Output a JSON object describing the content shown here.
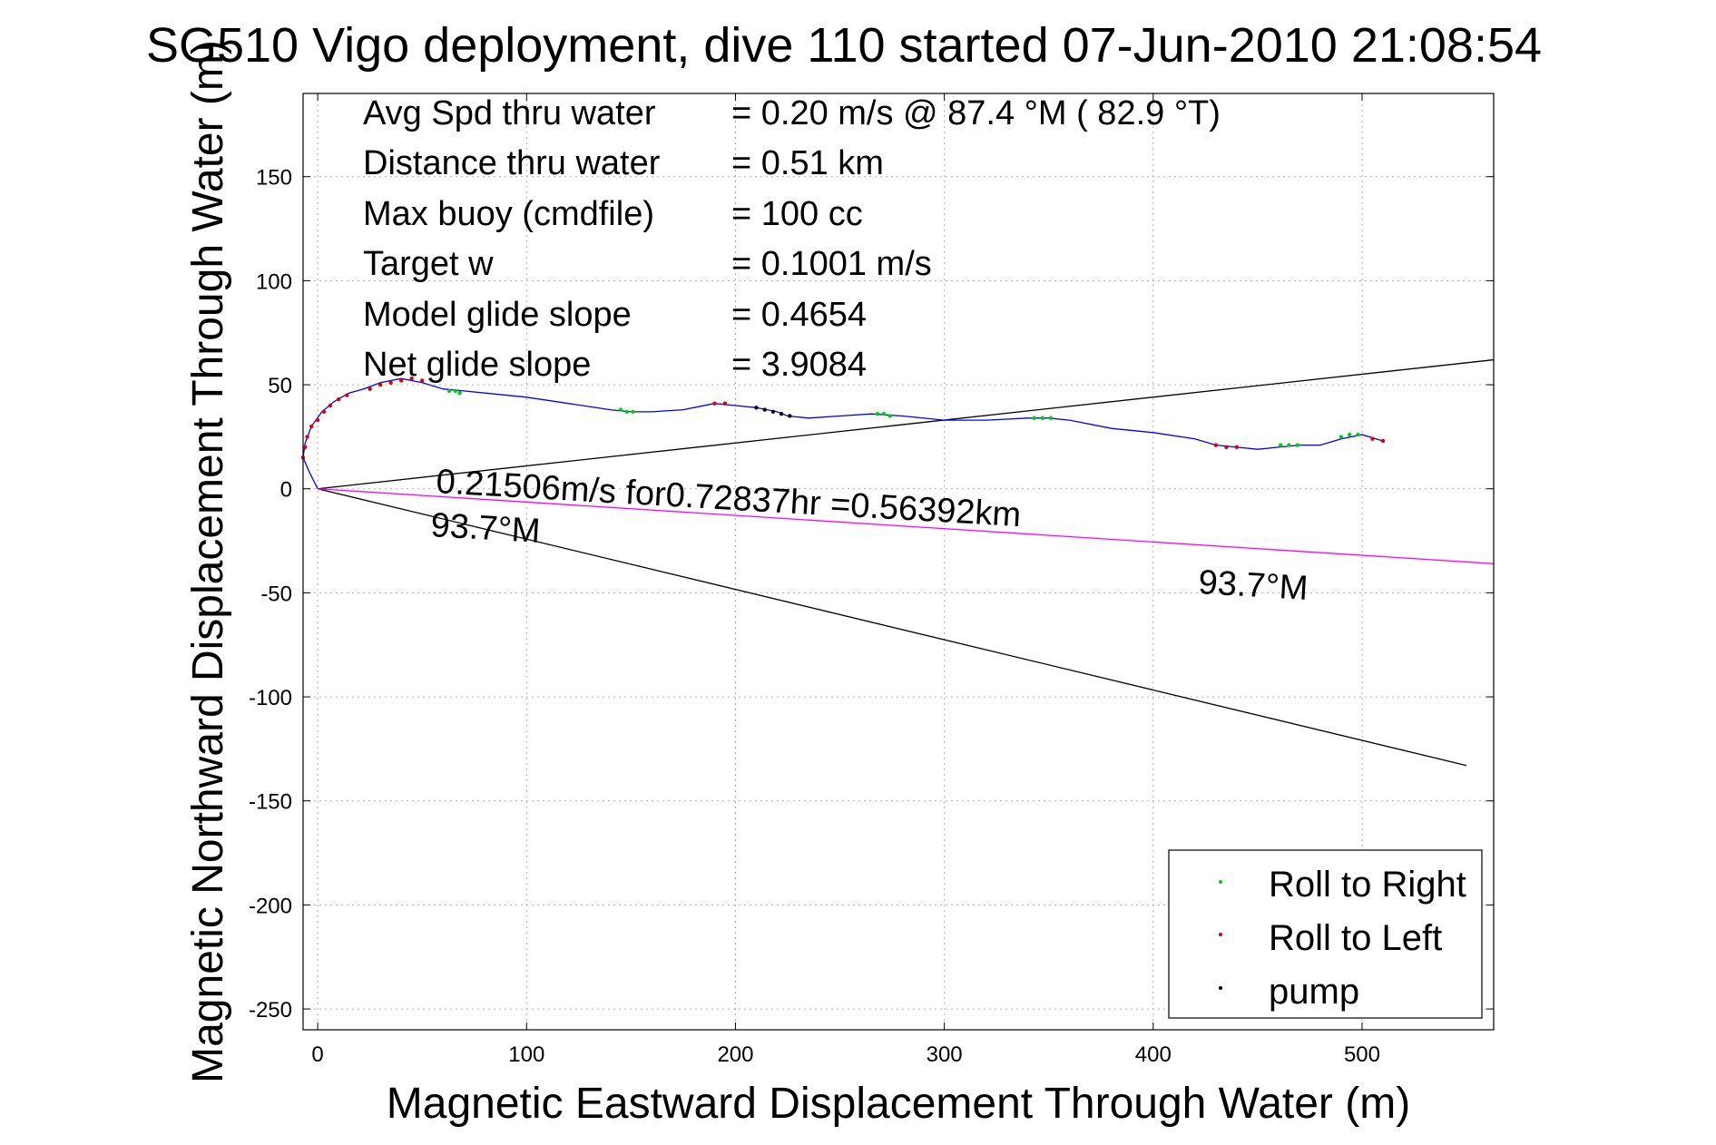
{
  "chart_data": {
    "type": "line",
    "title": "SG510 Vigo deployment, dive 110 started 07-Jun-2010 21:08:54",
    "xlabel": "Magnetic Eastward Displacement Through Water (m)",
    "ylabel": "Magnetic Northward Displacement Through Water (m)",
    "xlim": [
      -7,
      563
    ],
    "ylim": [
      -260,
      190
    ],
    "x_ticks": [
      "0",
      "100",
      "200",
      "300",
      "400",
      "500"
    ],
    "x_tick_values": [
      0,
      100,
      200,
      300,
      400,
      500
    ],
    "y_ticks": [
      "150",
      "100",
      "50",
      "0",
      "-50",
      "-100",
      "-150",
      "-200",
      "-250"
    ],
    "y_tick_values": [
      150,
      100,
      50,
      0,
      -50,
      -100,
      -150,
      -200,
      -250
    ],
    "grid": true,
    "legend_position": "bottom-right",
    "info_lines": [
      {
        "label": "Avg Spd thru water",
        "value": "=  0.20 m/s @  87.4 °M ( 82.9 °T)"
      },
      {
        "label": "Distance thru water",
        "value": "=  0.51 km"
      },
      {
        "label": "Max buoy (cmdfile)",
        "value": "= 100 cc"
      },
      {
        "label": "Target w",
        "value": "= 0.1001 m/s"
      },
      {
        "label": "Model glide slope",
        "value": "= 0.4654"
      },
      {
        "label": "Net glide slope",
        "value": "= 3.9084"
      }
    ],
    "annotations": {
      "current": "0.21506m/s for0.72837hr =0.56392km",
      "current_heading": "93.7°M",
      "heading_label": "93.7°M"
    },
    "track": {
      "color": "#0000ff",
      "x": [
        0,
        -4,
        -7,
        -6,
        -3,
        2,
        8,
        15,
        22,
        30,
        40,
        50,
        60,
        70,
        80,
        100,
        120,
        140,
        150,
        160,
        175,
        190,
        200,
        210,
        220,
        225,
        235,
        250,
        265,
        280,
        300,
        320,
        340,
        350,
        360,
        380,
        400,
        420,
        430,
        440,
        450,
        460,
        470,
        480,
        490,
        500,
        510
      ],
      "y": [
        0,
        8,
        15,
        22,
        30,
        37,
        42,
        46,
        48,
        51,
        53,
        51,
        48,
        47,
        46,
        44,
        41,
        38,
        37,
        37,
        38,
        41,
        40,
        39,
        37,
        35,
        34,
        35,
        36,
        35,
        33,
        33,
        34,
        34,
        33,
        29,
        27,
        24,
        21,
        20,
        19,
        20,
        21,
        21,
        24,
        26,
        23
      ]
    },
    "series": [
      {
        "name": "Roll to Right",
        "color": "#00d000",
        "x": [
          63,
          66,
          68,
          145,
          148,
          151,
          268,
          271,
          274,
          343,
          347,
          351,
          461,
          465,
          469,
          490,
          494,
          498
        ],
        "y": [
          47,
          47,
          46,
          38,
          37,
          37,
          36,
          36,
          35,
          34,
          34,
          34,
          21,
          21,
          21,
          25,
          26,
          26
        ]
      },
      {
        "name": "Roll to Left",
        "color": "#e00000",
        "x": [
          -7,
          -6,
          -5,
          -3,
          0,
          3,
          6,
          10,
          14,
          25,
          30,
          35,
          40,
          45,
          50,
          190,
          195,
          430,
          435,
          440,
          505,
          510
        ],
        "y": [
          15,
          20,
          25,
          30,
          33,
          37,
          40,
          43,
          45,
          48,
          50,
          51,
          52,
          53,
          52,
          41,
          41,
          21,
          20,
          20,
          24,
          23
        ]
      },
      {
        "name": "pump",
        "color": "#000000",
        "x": [
          210,
          214,
          218,
          222,
          226
        ],
        "y": [
          39,
          38,
          37,
          36,
          35
        ]
      }
    ],
    "reference_lines": [
      {
        "color": "#000000",
        "x": [
          0,
          563
        ],
        "y": [
          0,
          62
        ]
      },
      {
        "color": "#000000",
        "x": [
          0,
          550
        ],
        "y": [
          0,
          -133
        ]
      },
      {
        "color": "#ff00ff",
        "x": [
          0,
          563
        ],
        "y": [
          0,
          -36
        ]
      }
    ]
  }
}
